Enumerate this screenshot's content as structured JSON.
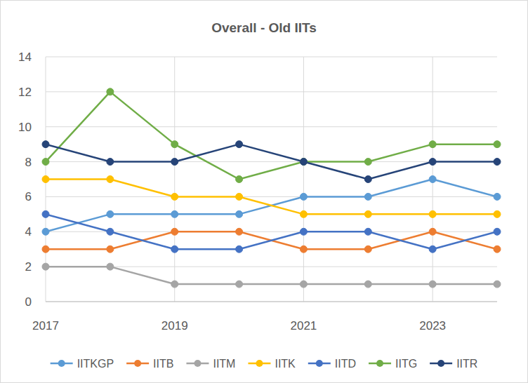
{
  "chart_data": {
    "type": "line",
    "title": "Overall - Old IITs",
    "x": [
      2017,
      2018,
      2019,
      2020,
      2021,
      2022,
      2023,
      2024
    ],
    "xlim": [
      2017,
      2024
    ],
    "xticks": [
      2017,
      2019,
      2021,
      2023
    ],
    "ylim": [
      0,
      14
    ],
    "yticks": [
      0,
      2,
      4,
      6,
      8,
      10,
      12,
      14
    ],
    "grid": true,
    "legend": "bottom",
    "marker": "circle",
    "series": [
      {
        "name": "IITKGP",
        "color": "#5b9bd5",
        "values": [
          4,
          5,
          5,
          5,
          6,
          6,
          7,
          6
        ]
      },
      {
        "name": "IITB",
        "color": "#ed7d31",
        "values": [
          3,
          3,
          4,
          4,
          3,
          3,
          4,
          3
        ]
      },
      {
        "name": "IITM",
        "color": "#a5a5a5",
        "values": [
          2,
          2,
          1,
          1,
          1,
          1,
          1,
          1
        ]
      },
      {
        "name": "IITK",
        "color": "#ffc000",
        "values": [
          7,
          7,
          6,
          6,
          5,
          5,
          5,
          5
        ]
      },
      {
        "name": "IITD",
        "color": "#4472c4",
        "values": [
          5,
          4,
          3,
          3,
          4,
          4,
          3,
          4
        ]
      },
      {
        "name": "IITG",
        "color": "#70ad47",
        "values": [
          8,
          12,
          9,
          7,
          8,
          8,
          9,
          9
        ]
      },
      {
        "name": "IITR",
        "color": "#264478",
        "values": [
          9,
          8,
          8,
          9,
          8,
          7,
          8,
          8
        ]
      }
    ]
  }
}
